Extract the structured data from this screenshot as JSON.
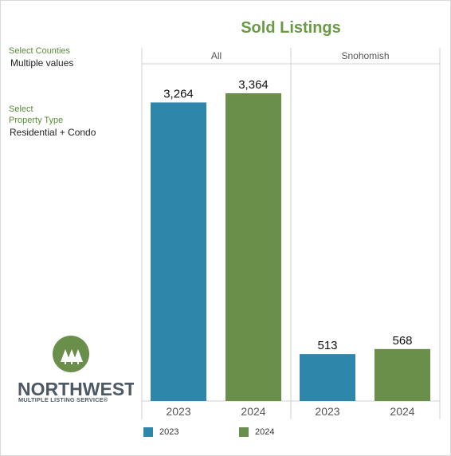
{
  "filters": {
    "counties_label": "Select Counties",
    "counties_value": "Multiple values",
    "property_label_line1": "Select",
    "property_label_line2": "Property Type",
    "property_value": "Residential + Condo"
  },
  "logo": {
    "line1": "NORTHWEST",
    "line2": "MULTIPLE LISTING SERVICE®",
    "color": "#6a8f4a"
  },
  "colors": {
    "y2023": "#2e86ab",
    "y2024": "#6a8f4a"
  },
  "chart_data": {
    "type": "bar",
    "title": "Sold Listings",
    "panels": [
      {
        "name": "All",
        "categories": [
          "2023",
          "2024"
        ],
        "values": [
          3264,
          3364
        ],
        "labels": [
          "3,264",
          "3,364"
        ]
      },
      {
        "name": "Snohomish",
        "categories": [
          "2023",
          "2024"
        ],
        "values": [
          513,
          568
        ],
        "labels": [
          "513",
          "568"
        ]
      }
    ],
    "legend": [
      {
        "name": "2023",
        "color": "#2e86ab"
      },
      {
        "name": "2024",
        "color": "#6a8f4a"
      }
    ],
    "legend_placement": "bottom"
  }
}
